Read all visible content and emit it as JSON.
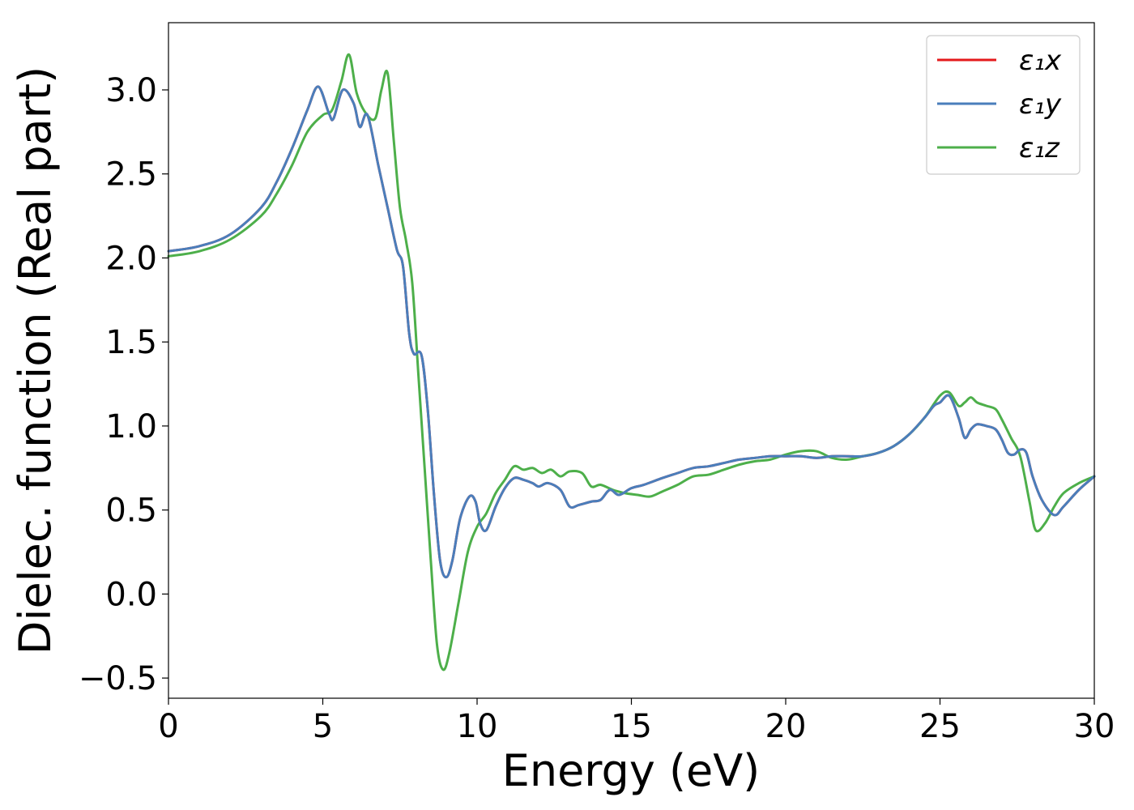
{
  "chart_data": {
    "type": "line",
    "title": "",
    "xlabel": "Energy (eV)",
    "ylabel": "Dielec. function (Real part)",
    "xlim": [
      0,
      30
    ],
    "ylim": [
      -0.62,
      3.4
    ],
    "xticks": [
      0,
      5,
      10,
      15,
      20,
      25,
      30
    ],
    "xtick_labels": [
      "0",
      "5",
      "10",
      "15",
      "20",
      "25",
      "30"
    ],
    "yticks": [
      -0.5,
      0.0,
      0.5,
      1.0,
      1.5,
      2.0,
      2.5,
      3.0
    ],
    "ytick_labels": [
      "−0.5",
      "0.0",
      "0.5",
      "1.0",
      "1.5",
      "2.0",
      "2.5",
      "3.0"
    ],
    "grid": false,
    "legend_position": "top-right",
    "series": [
      {
        "name": "ε₁x",
        "color": "#e41a1c",
        "x": [
          0,
          1,
          2,
          3,
          3.5,
          4,
          4.5,
          4.85,
          5.2,
          5.35,
          5.65,
          6.0,
          6.2,
          6.45,
          6.8,
          7.1,
          7.4,
          7.6,
          7.8,
          7.95,
          8.2,
          8.4,
          8.6,
          8.8,
          9.0,
          9.2,
          9.45,
          9.75,
          9.95,
          10.1,
          10.3,
          10.6,
          10.9,
          11.2,
          11.5,
          11.8,
          12.0,
          12.3,
          12.7,
          13.0,
          13.3,
          13.7,
          14.0,
          14.3,
          14.6,
          15.0,
          15.4,
          16.0,
          16.5,
          17.0,
          17.5,
          18.0,
          18.5,
          19.0,
          19.5,
          20.0,
          20.5,
          21.0,
          21.5,
          22.0,
          22.5,
          23.0,
          23.5,
          24.0,
          24.5,
          24.8,
          25.0,
          25.3,
          25.6,
          25.8,
          26.0,
          26.2,
          26.5,
          26.8,
          27.0,
          27.2,
          27.4,
          27.6,
          27.8,
          28.0,
          28.3,
          28.7,
          29.0,
          29.5,
          30.0
        ],
        "values": [
          2.04,
          2.07,
          2.14,
          2.3,
          2.45,
          2.65,
          2.88,
          3.02,
          2.86,
          2.83,
          3.0,
          2.92,
          2.78,
          2.85,
          2.55,
          2.3,
          2.05,
          1.95,
          1.55,
          1.43,
          1.42,
          1.1,
          0.6,
          0.2,
          0.1,
          0.2,
          0.45,
          0.58,
          0.55,
          0.42,
          0.38,
          0.52,
          0.63,
          0.69,
          0.68,
          0.66,
          0.64,
          0.66,
          0.62,
          0.52,
          0.53,
          0.55,
          0.56,
          0.62,
          0.59,
          0.63,
          0.65,
          0.69,
          0.72,
          0.75,
          0.76,
          0.78,
          0.8,
          0.81,
          0.82,
          0.82,
          0.82,
          0.81,
          0.82,
          0.82,
          0.82,
          0.84,
          0.88,
          0.95,
          1.05,
          1.12,
          1.14,
          1.18,
          1.05,
          0.93,
          0.98,
          1.01,
          1.0,
          0.98,
          0.92,
          0.84,
          0.83,
          0.86,
          0.84,
          0.7,
          0.56,
          0.47,
          0.52,
          0.62,
          0.7
        ]
      },
      {
        "name": "ε₁y",
        "color": "#4a7ebb",
        "x": [
          0,
          1,
          2,
          3,
          3.5,
          4,
          4.5,
          4.85,
          5.2,
          5.35,
          5.65,
          6.0,
          6.2,
          6.45,
          6.8,
          7.1,
          7.4,
          7.6,
          7.8,
          7.95,
          8.2,
          8.4,
          8.6,
          8.8,
          9.0,
          9.2,
          9.45,
          9.75,
          9.95,
          10.1,
          10.3,
          10.6,
          10.9,
          11.2,
          11.5,
          11.8,
          12.0,
          12.3,
          12.7,
          13.0,
          13.3,
          13.7,
          14.0,
          14.3,
          14.6,
          15.0,
          15.4,
          16.0,
          16.5,
          17.0,
          17.5,
          18.0,
          18.5,
          19.0,
          19.5,
          20.0,
          20.5,
          21.0,
          21.5,
          22.0,
          22.5,
          23.0,
          23.5,
          24.0,
          24.5,
          24.8,
          25.0,
          25.3,
          25.6,
          25.8,
          26.0,
          26.2,
          26.5,
          26.8,
          27.0,
          27.2,
          27.4,
          27.6,
          27.8,
          28.0,
          28.3,
          28.7,
          29.0,
          29.5,
          30.0
        ],
        "values": [
          2.04,
          2.07,
          2.14,
          2.3,
          2.45,
          2.65,
          2.88,
          3.02,
          2.86,
          2.83,
          3.0,
          2.92,
          2.78,
          2.85,
          2.55,
          2.3,
          2.05,
          1.95,
          1.55,
          1.43,
          1.42,
          1.1,
          0.6,
          0.2,
          0.1,
          0.2,
          0.45,
          0.58,
          0.55,
          0.42,
          0.38,
          0.52,
          0.63,
          0.69,
          0.68,
          0.66,
          0.64,
          0.66,
          0.62,
          0.52,
          0.53,
          0.55,
          0.56,
          0.62,
          0.59,
          0.63,
          0.65,
          0.69,
          0.72,
          0.75,
          0.76,
          0.78,
          0.8,
          0.81,
          0.82,
          0.82,
          0.82,
          0.81,
          0.82,
          0.82,
          0.82,
          0.84,
          0.88,
          0.95,
          1.05,
          1.12,
          1.14,
          1.18,
          1.05,
          0.93,
          0.98,
          1.01,
          1.0,
          0.98,
          0.92,
          0.84,
          0.83,
          0.86,
          0.84,
          0.7,
          0.56,
          0.47,
          0.52,
          0.62,
          0.7
        ]
      },
      {
        "name": "ε₁z",
        "color": "#4daf4a",
        "x": [
          0,
          1,
          2,
          3,
          3.5,
          4,
          4.5,
          5.0,
          5.3,
          5.6,
          5.85,
          6.1,
          6.4,
          6.7,
          6.9,
          7.1,
          7.3,
          7.5,
          7.7,
          7.9,
          8.1,
          8.3,
          8.5,
          8.7,
          8.9,
          9.1,
          9.4,
          9.7,
          10.0,
          10.3,
          10.6,
          10.9,
          11.2,
          11.5,
          11.8,
          12.1,
          12.4,
          12.7,
          13.0,
          13.4,
          13.7,
          14.0,
          14.4,
          14.8,
          15.2,
          15.6,
          16.0,
          16.5,
          17.0,
          17.5,
          18.0,
          18.5,
          19.0,
          19.5,
          20.0,
          20.5,
          21.0,
          21.5,
          22.0,
          22.5,
          23.0,
          23.5,
          24.0,
          24.5,
          25.0,
          25.3,
          25.6,
          25.8,
          26.0,
          26.2,
          26.5,
          26.8,
          27.0,
          27.3,
          27.6,
          27.9,
          28.1,
          28.4,
          28.7,
          29.0,
          29.5,
          30.0
        ],
        "values": [
          2.01,
          2.04,
          2.11,
          2.25,
          2.38,
          2.55,
          2.75,
          2.85,
          2.88,
          3.05,
          3.21,
          2.98,
          2.86,
          2.83,
          3.0,
          3.1,
          2.7,
          2.3,
          2.1,
          1.85,
          1.3,
          0.75,
          0.2,
          -0.3,
          -0.45,
          -0.35,
          -0.05,
          0.25,
          0.4,
          0.48,
          0.6,
          0.68,
          0.76,
          0.74,
          0.75,
          0.72,
          0.74,
          0.7,
          0.73,
          0.72,
          0.64,
          0.65,
          0.62,
          0.6,
          0.59,
          0.58,
          0.61,
          0.65,
          0.7,
          0.71,
          0.74,
          0.77,
          0.79,
          0.8,
          0.83,
          0.85,
          0.85,
          0.81,
          0.8,
          0.82,
          0.84,
          0.88,
          0.95,
          1.05,
          1.18,
          1.2,
          1.12,
          1.14,
          1.17,
          1.14,
          1.12,
          1.1,
          1.04,
          0.93,
          0.82,
          0.55,
          0.38,
          0.42,
          0.52,
          0.6,
          0.66,
          0.7
        ]
      }
    ]
  }
}
